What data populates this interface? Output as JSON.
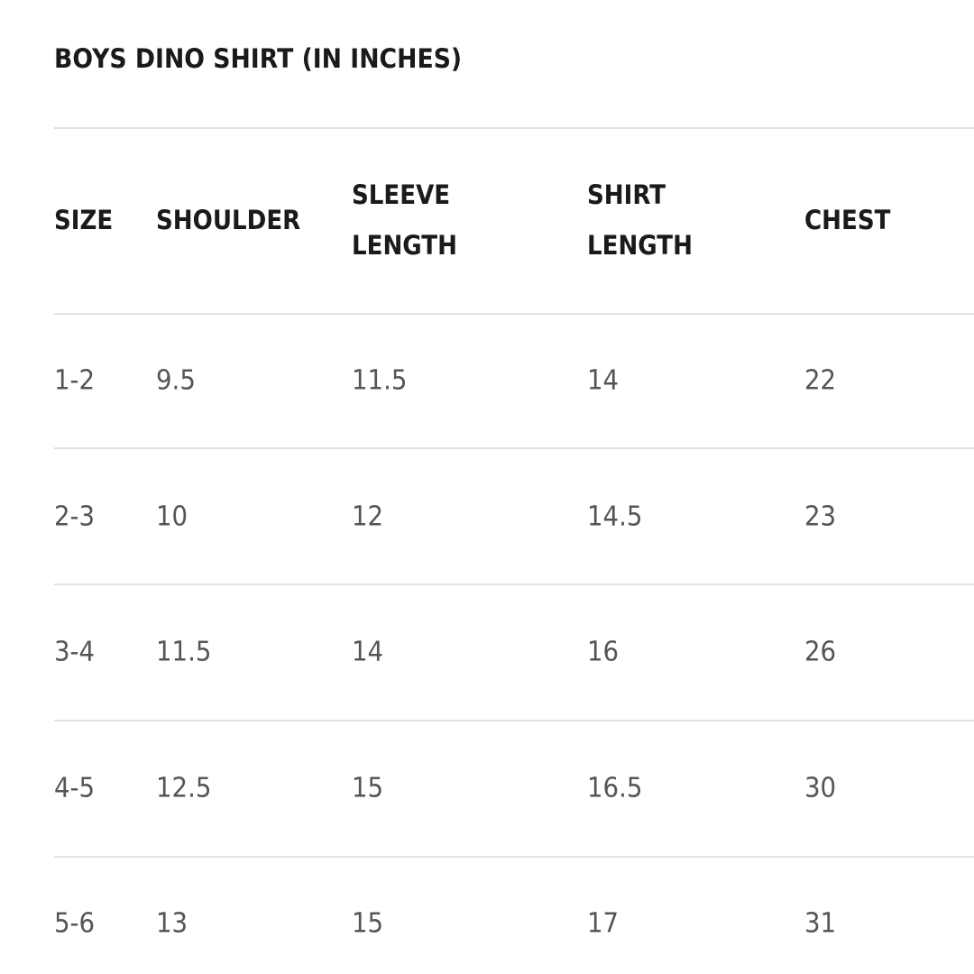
{
  "title": "BOYS DINO SHIRT (IN INCHES)",
  "table": {
    "headers": [
      [
        "SIZE"
      ],
      [
        "SHOULDER"
      ],
      [
        "SLEEVE",
        "LENGTH"
      ],
      [
        "SHIRT",
        "LENGTH"
      ],
      [
        "CHEST"
      ]
    ],
    "rows": [
      [
        "1-2",
        "9.5",
        "11.5",
        "14",
        "22"
      ],
      [
        "2-3",
        "10",
        "12",
        "14.5",
        "23"
      ],
      [
        "3-4",
        "11.5",
        "14",
        "16",
        "26"
      ],
      [
        "4-5",
        "12.5",
        "15",
        "16.5",
        "30"
      ],
      [
        "5-6",
        "13",
        "15",
        "17",
        "31"
      ]
    ]
  }
}
